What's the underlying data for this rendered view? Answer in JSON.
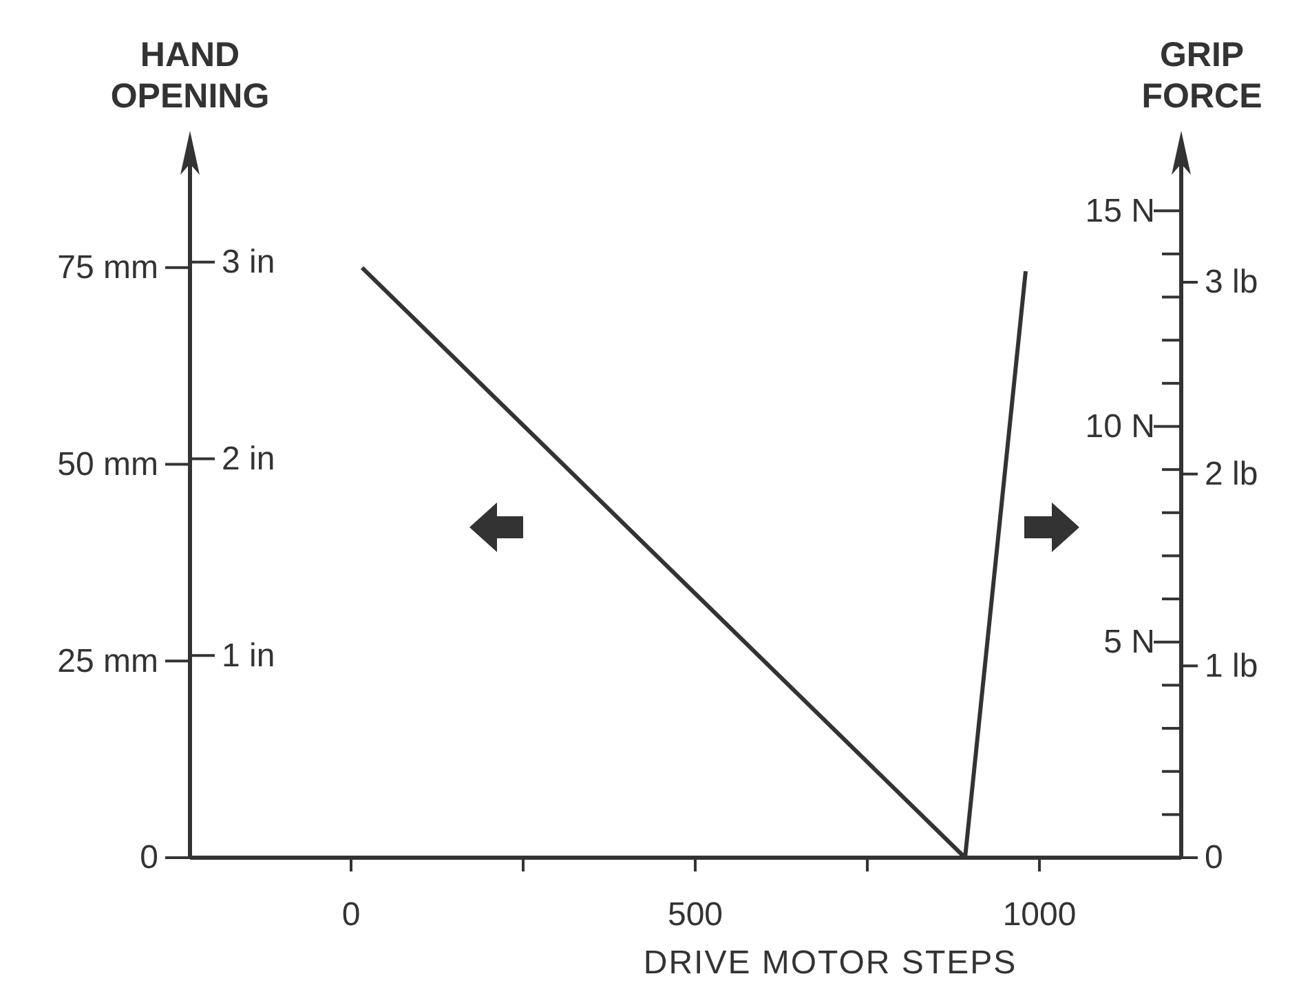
{
  "chart_data": {
    "type": "line",
    "xlabel": "DRIVE MOTOR STEPS",
    "ylabel": "HAND OPENING",
    "y2label": "GRIP FORCE",
    "xlim": [
      -234,
      1206
    ],
    "xticks": [
      0,
      {
        "value": 250,
        "label": null
      },
      500,
      {
        "value": 750,
        "label": null
      },
      1000
    ],
    "ylim": [
      0,
      91
    ],
    "yticks": [
      {
        "value": 0,
        "label": "0"
      },
      {
        "value": 25,
        "label": "25 mm"
      },
      {
        "value": 50,
        "label": "50 mm"
      },
      {
        "value": 75,
        "label": "75 mm"
      }
    ],
    "y2lim": [
      0,
      16.6
    ],
    "y2ticks": [
      {
        "value": 1,
        "label": null
      },
      {
        "value": 2,
        "label": null
      },
      {
        "value": 3,
        "label": null
      },
      {
        "value": 4,
        "label": null
      },
      {
        "value": 5,
        "label": "5 N"
      },
      {
        "value": 6,
        "label": null
      },
      {
        "value": 7,
        "label": null
      },
      {
        "value": 8,
        "label": null
      },
      {
        "value": 9,
        "label": null
      },
      {
        "value": 10,
        "label": "10 N"
      },
      {
        "value": 11,
        "label": null
      },
      {
        "value": 12,
        "label": null
      },
      {
        "value": 13,
        "label": null
      },
      {
        "value": 14,
        "label": null
      },
      {
        "value": 15,
        "label": "15 N"
      }
    ],
    "y3lim": [
      0,
      3.732
    ],
    "y3ticks": [
      0,
      {
        "value": 1,
        "label": "1 lb"
      },
      {
        "value": 2,
        "label": "2 lb"
      },
      {
        "value": 3,
        "label": "3 lb"
      }
    ],
    "annotations": [
      "1 in",
      "2 in",
      "3 in"
    ],
    "grid": false,
    "legend": false,
    "marker": "none",
    "line_style": "solid",
    "series": [
      {
        "color": "#333333",
        "x": [
          16,
          892
        ],
        "values": [
          75,
          0
        ]
      },
      {
        "color": "#333333",
        "axis": "y2",
        "x": [
          892,
          980
        ],
        "values": [
          0,
          13.6
        ]
      }
    ]
  }
}
